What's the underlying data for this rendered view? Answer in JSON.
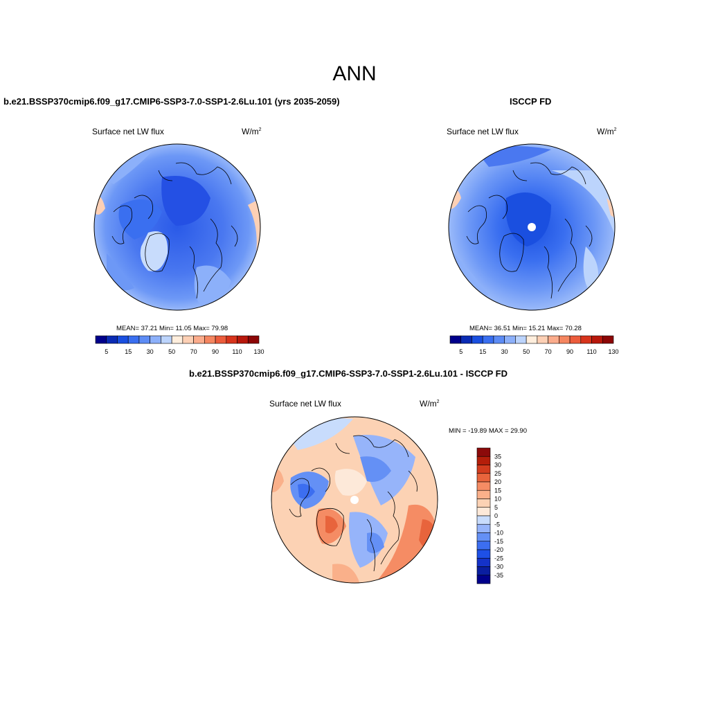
{
  "main_title": "ANN",
  "panels": [
    {
      "title": "b.e21.BSSP370cmip6.f09_g17.CMIP6-SSP3-7.0-SSP1-2.6Lu.101 (yrs 2035-2059)",
      "variable": "Surface net LW flux",
      "units": "W/m",
      "units_exp": "2",
      "stats_label": "MEAN=  37.21  Min=  11.05  Max=  79.98",
      "mean": 37.21,
      "min": 11.05,
      "max": 79.98
    },
    {
      "title": "ISCCP FD",
      "variable": "Surface net LW flux",
      "units": "W/m",
      "units_exp": "2",
      "stats_label": "MEAN=  36.51  Min=  15.21  Max=  70.28",
      "mean": 36.51,
      "min": 15.21,
      "max": 70.28
    },
    {
      "title": "b.e21.BSSP370cmip6.f09_g17.CMIP6-SSP3-7.0-SSP1-2.6Lu.101 - ISCCP FD",
      "variable": "Surface net LW flux",
      "units": "W/m",
      "units_exp": "2",
      "stats_label": "MIN = -19.89 MAX =  29.90",
      "min": -19.89,
      "max": 29.9
    }
  ],
  "colorbar_abs": {
    "colors": [
      "#00008b",
      "#0a2bb4",
      "#1a4fe0",
      "#3a6ff0",
      "#5d8cf5",
      "#8cb0fa",
      "#bcd4fc",
      "#ffeedd",
      "#fdd0b5",
      "#fbac8c",
      "#f58660",
      "#ec5c3c",
      "#d8341c",
      "#b8180c",
      "#8c0606"
    ],
    "tick_labels": [
      "5",
      "15",
      "30",
      "50",
      "70",
      "90",
      "110",
      "130"
    ]
  },
  "colorbar_diff": {
    "colors": [
      "#00008b",
      "#0a1ea0",
      "#1432c8",
      "#1e50e6",
      "#3c6ef0",
      "#6490f5",
      "#96b4fa",
      "#c8dcfc",
      "#fde9d9",
      "#fcd2b4",
      "#fab08a",
      "#f58c64",
      "#e8643c",
      "#d23c1e",
      "#b41e0a",
      "#8c0a0a"
    ],
    "tick_labels": [
      "-35",
      "-30",
      "-25",
      "-20",
      "-15",
      "-10",
      "-5",
      "0",
      "5",
      "10",
      "15",
      "20",
      "25",
      "30",
      "35"
    ]
  }
}
